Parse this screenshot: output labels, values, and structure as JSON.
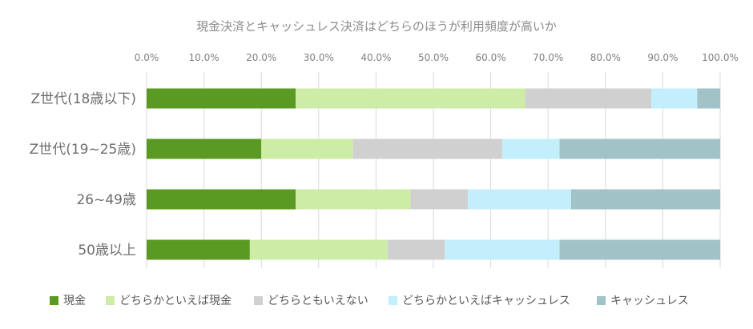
{
  "chart_data": {
    "type": "bar",
    "orientation": "horizontal",
    "stacked": true,
    "title": "現金決済とキャッシュレス決済はどちらのほうが利用頻度が高いか",
    "xlabel": "",
    "ylabel": "",
    "xlim": [
      0,
      100
    ],
    "x_ticks": [
      "0.0%",
      "10.0%",
      "20.0%",
      "30.0%",
      "40.0%",
      "50.0%",
      "60.0%",
      "70.0%",
      "80.0%",
      "90.0%",
      "100.0%"
    ],
    "grid": true,
    "legend_position": "bottom",
    "categories": [
      "Z世代(18歳以下)",
      "Z世代(19~25歳)",
      "26~49歳",
      "50歳以上"
    ],
    "series": [
      {
        "name": "現金",
        "color": "#5b9a22",
        "values": [
          26,
          20,
          26,
          18
        ]
      },
      {
        "name": "どちらかといえば現金",
        "color": "#cdeca5",
        "values": [
          40,
          16,
          20,
          24
        ]
      },
      {
        "name": "どちらともいえない",
        "color": "#d0d0d0",
        "values": [
          22,
          26,
          10,
          10
        ]
      },
      {
        "name": "どちらかといえばキャッシュレス",
        "color": "#c3effc",
        "values": [
          8,
          10,
          18,
          20
        ]
      },
      {
        "name": "キャッシュレス",
        "color": "#a1c3c8",
        "values": [
          4,
          28,
          26,
          28
        ]
      }
    ]
  }
}
